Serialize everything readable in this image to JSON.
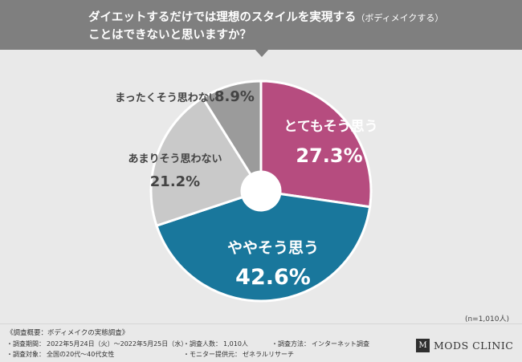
{
  "header": {
    "title_line1": "ダイエットするだけでは理想のスタイルを実現する",
    "title_note": "（ボディメイクする）",
    "title_line2": "ことはできないと思いますか？"
  },
  "chart_data": {
    "type": "pie",
    "donut": true,
    "unit": "%",
    "slices": [
      {
        "label": "とてもそう思う",
        "value": 27.3,
        "value_text": "27.3%",
        "color": "#b64c7f",
        "text_color": "#ffffff"
      },
      {
        "label": "ややそう思う",
        "value": 42.6,
        "value_text": "42.6%",
        "color": "#19779c",
        "text_color": "#ffffff"
      },
      {
        "label": "あまりそう思わない",
        "value": 21.2,
        "value_text": "21.2%",
        "color": "#c9c9c9",
        "text_color": "#444444"
      },
      {
        "label": "まったくそう思わない",
        "value": 8.9,
        "value_text": "8.9%",
        "color": "#9b9b9b",
        "text_color": "#444444"
      }
    ]
  },
  "sample_note": "(n=1,010人)",
  "footer": {
    "survey_title": "《調査概要：ボディメイクの実態調査》",
    "period_label": "・調査期間：",
    "period_value": "2022年5月24日（火）〜2022年5月25日（水）",
    "people_label": "・調査人数：",
    "people_value": "1,010人",
    "method_label": "・調査方法：",
    "method_value": "インターネット調査",
    "target_label": "・調査対象：",
    "target_value": "全国の20代〜40代女性",
    "provider_label": "・モニター提供元：",
    "provider_value": "ゼネラルリサーチ"
  },
  "logo": {
    "mark": "M",
    "text": "MODS CLINIC"
  }
}
